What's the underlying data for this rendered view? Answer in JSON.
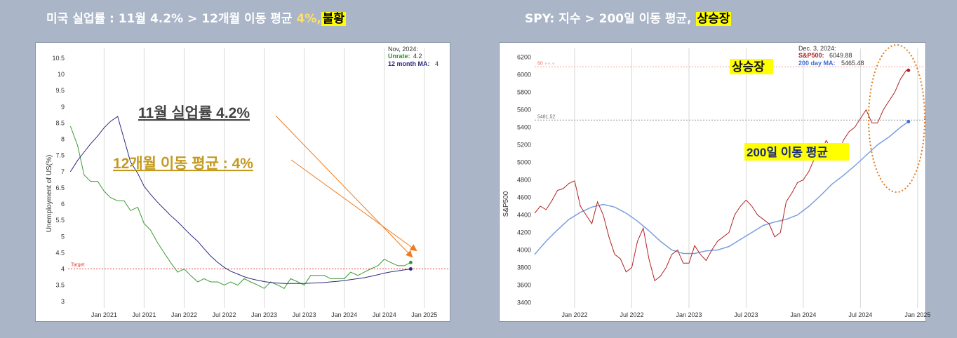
{
  "left": {
    "header": {
      "prefix": "미국 실업률 : 11월 4.2% > 12개월 이동 평균 ",
      "accent": "4%,",
      "highlight": "불황"
    },
    "chart_data": {
      "type": "line",
      "ylabel": "Unemployment of US(%)",
      "y_ticks": [
        "10.5",
        "10",
        "9.5",
        "9",
        "8.5",
        "8",
        "7.5",
        "7",
        "6.5",
        "6",
        "5.5",
        "5",
        "4.5",
        "4",
        "3.5",
        "3"
      ],
      "ylim": [
        2.8,
        10.8
      ],
      "x_ticks": [
        "Jan 2021",
        "Jul 2021",
        "Jan 2022",
        "Jul 2022",
        "Jan 2023",
        "Jul 2023",
        "Jan 2024",
        "Jul 2024",
        "Jan 2025"
      ],
      "x_tick_values": [
        2021.0,
        2021.5,
        2022.0,
        2022.5,
        2023.0,
        2023.5,
        2024.0,
        2024.5,
        2025.0
      ],
      "xlim": [
        2020.55,
        2025.3
      ],
      "grid": true,
      "target": {
        "label": "Target",
        "value": 4.0
      },
      "legend": {
        "date": "Nov, 2024:",
        "unrate_label": "Unrate:",
        "unrate_value": "4.2",
        "ma_label": "12 month MA:",
        "ma_value": "4"
      },
      "series": [
        {
          "key": "unrate",
          "color": "#3a9a32",
          "x": [
            2020.58,
            2020.67,
            2020.75,
            2020.83,
            2020.92,
            2021.0,
            2021.08,
            2021.17,
            2021.25,
            2021.33,
            2021.42,
            2021.5,
            2021.58,
            2021.67,
            2021.75,
            2021.83,
            2021.92,
            2022.0,
            2022.08,
            2022.17,
            2022.25,
            2022.33,
            2022.42,
            2022.5,
            2022.58,
            2022.67,
            2022.75,
            2022.83,
            2022.92,
            2023.0,
            2023.08,
            2023.17,
            2023.25,
            2023.33,
            2023.42,
            2023.5,
            2023.58,
            2023.67,
            2023.75,
            2023.83,
            2023.92,
            2024.0,
            2024.08,
            2024.17,
            2024.25,
            2024.33,
            2024.42,
            2024.5,
            2024.58,
            2024.67,
            2024.75,
            2024.83
          ],
          "values": [
            8.4,
            7.8,
            6.9,
            6.7,
            6.7,
            6.4,
            6.2,
            6.1,
            6.1,
            5.8,
            5.9,
            5.4,
            5.2,
            4.8,
            4.5,
            4.2,
            3.9,
            4.0,
            3.8,
            3.6,
            3.7,
            3.6,
            3.6,
            3.5,
            3.6,
            3.5,
            3.7,
            3.6,
            3.5,
            3.4,
            3.6,
            3.5,
            3.4,
            3.7,
            3.6,
            3.5,
            3.8,
            3.8,
            3.8,
            3.7,
            3.7,
            3.7,
            3.9,
            3.8,
            3.9,
            4.0,
            4.1,
            4.3,
            4.2,
            4.1,
            4.1,
            4.2
          ]
        },
        {
          "key": "ma",
          "color": "#2b2a80",
          "x": [
            2020.58,
            2020.67,
            2020.75,
            2020.83,
            2020.92,
            2021.0,
            2021.08,
            2021.17,
            2021.25,
            2021.33,
            2021.42,
            2021.5,
            2021.58,
            2021.67,
            2021.75,
            2021.83,
            2021.92,
            2022.0,
            2022.08,
            2022.17,
            2022.25,
            2022.33,
            2022.42,
            2022.5,
            2022.58,
            2022.67,
            2022.75,
            2022.83,
            2022.92,
            2023.0,
            2023.08,
            2023.17,
            2023.25,
            2023.33,
            2023.42,
            2023.5,
            2023.58,
            2023.67,
            2023.75,
            2023.83,
            2023.92,
            2024.0,
            2024.08,
            2024.17,
            2024.25,
            2024.33,
            2024.42,
            2024.5,
            2024.58,
            2024.67,
            2024.75,
            2024.83
          ],
          "values": [
            7.0,
            7.35,
            7.6,
            7.85,
            8.1,
            8.35,
            8.55,
            8.7,
            8.0,
            7.3,
            6.95,
            6.55,
            6.3,
            6.05,
            5.85,
            5.65,
            5.45,
            5.25,
            5.05,
            4.85,
            4.62,
            4.4,
            4.2,
            4.05,
            3.93,
            3.84,
            3.76,
            3.7,
            3.65,
            3.61,
            3.58,
            3.56,
            3.55,
            3.55,
            3.55,
            3.55,
            3.56,
            3.57,
            3.58,
            3.6,
            3.62,
            3.64,
            3.67,
            3.7,
            3.73,
            3.77,
            3.82,
            3.87,
            3.91,
            3.94,
            3.97,
            4.0
          ]
        }
      ],
      "annotations": [
        {
          "text": "11월 실업률 4.2%",
          "color": "#444444"
        },
        {
          "text": "12개월 이동 평균 : 4%",
          "color": "#c49a1e"
        }
      ]
    }
  },
  "right": {
    "header": {
      "prefix": "SPY: 지수 > 200일 이동 평균, ",
      "highlight": "상승장"
    },
    "chart_data": {
      "type": "line",
      "ylabel": "S&P500",
      "y_ticks": [
        "6200",
        "6000",
        "5800",
        "5600",
        "5400",
        "5200",
        "5000",
        "4800",
        "4600",
        "4400",
        "4200",
        "4000",
        "3800",
        "3600",
        "3400"
      ],
      "ylim": [
        3340,
        6300
      ],
      "x_ticks": [
        "Jan 2022",
        "Jul 2022",
        "Jan 2023",
        "Jul 2023",
        "Jan 2024",
        "Jul 2024",
        "Jan 2025"
      ],
      "x_tick_values": [
        2022.0,
        2022.5,
        2023.0,
        2023.5,
        2024.0,
        2024.5,
        2025.0
      ],
      "xlim": [
        2021.65,
        2025.05
      ],
      "grid": true,
      "ref_line_label": "5481.52",
      "ref_line_value": 5481.52,
      "top_line_label": "60 ∘∘.∘ ",
      "top_line_value": 6090,
      "legend": {
        "date": "Dec. 3, 2024:",
        "spx_label": "S&P500:",
        "spx_value": "6049.88",
        "ma_label": "200 day MA:",
        "ma_value": "5465.48"
      },
      "series": [
        {
          "key": "sp500",
          "color": "#b22222",
          "x": [
            2021.65,
            2021.7,
            2021.75,
            2021.8,
            2021.85,
            2021.9,
            2021.95,
            2022.0,
            2022.05,
            2022.1,
            2022.15,
            2022.2,
            2022.25,
            2022.3,
            2022.35,
            2022.4,
            2022.45,
            2022.5,
            2022.55,
            2022.6,
            2022.65,
            2022.7,
            2022.75,
            2022.8,
            2022.85,
            2022.9,
            2022.95,
            2023.0,
            2023.05,
            2023.1,
            2023.15,
            2023.2,
            2023.25,
            2023.3,
            2023.35,
            2023.4,
            2023.45,
            2023.5,
            2023.55,
            2023.6,
            2023.65,
            2023.7,
            2023.75,
            2023.8,
            2023.85,
            2023.9,
            2023.95,
            2024.0,
            2024.05,
            2024.1,
            2024.15,
            2024.2,
            2024.25,
            2024.3,
            2024.35,
            2024.4,
            2024.45,
            2024.5,
            2024.55,
            2024.6,
            2024.65,
            2024.7,
            2024.75,
            2024.8,
            2024.85,
            2024.9,
            2024.92
          ],
          "values": [
            4420,
            4500,
            4460,
            4560,
            4680,
            4700,
            4760,
            4790,
            4500,
            4400,
            4300,
            4550,
            4400,
            4150,
            3950,
            3900,
            3750,
            3800,
            4100,
            4250,
            3900,
            3650,
            3700,
            3800,
            3950,
            4000,
            3850,
            3850,
            4050,
            3950,
            3880,
            4000,
            4100,
            4150,
            4200,
            4400,
            4500,
            4570,
            4500,
            4400,
            4350,
            4300,
            4150,
            4200,
            4550,
            4650,
            4770,
            4800,
            4900,
            5050,
            5100,
            5250,
            5150,
            5050,
            5250,
            5350,
            5400,
            5500,
            5600,
            5450,
            5450,
            5600,
            5700,
            5800,
            5950,
            6050,
            6050
          ]
        },
        {
          "key": "ma200",
          "color": "#7a9fdf",
          "x": [
            2021.65,
            2021.75,
            2021.85,
            2021.95,
            2022.05,
            2022.15,
            2022.25,
            2022.35,
            2022.45,
            2022.55,
            2022.65,
            2022.75,
            2022.85,
            2022.95,
            2023.05,
            2023.15,
            2023.25,
            2023.35,
            2023.45,
            2023.55,
            2023.65,
            2023.75,
            2023.85,
            2023.95,
            2024.05,
            2024.15,
            2024.25,
            2024.35,
            2024.45,
            2024.55,
            2024.65,
            2024.75,
            2024.85,
            2024.92
          ],
          "values": [
            3950,
            4100,
            4230,
            4350,
            4430,
            4490,
            4520,
            4490,
            4420,
            4330,
            4220,
            4100,
            4000,
            3960,
            3960,
            3990,
            4000,
            4040,
            4120,
            4200,
            4280,
            4320,
            4350,
            4400,
            4500,
            4620,
            4750,
            4850,
            4960,
            5080,
            5200,
            5290,
            5400,
            5465
          ]
        }
      ],
      "annotations": [
        {
          "text": "상승장"
        },
        {
          "text": "200일 이동 평균"
        }
      ]
    }
  }
}
